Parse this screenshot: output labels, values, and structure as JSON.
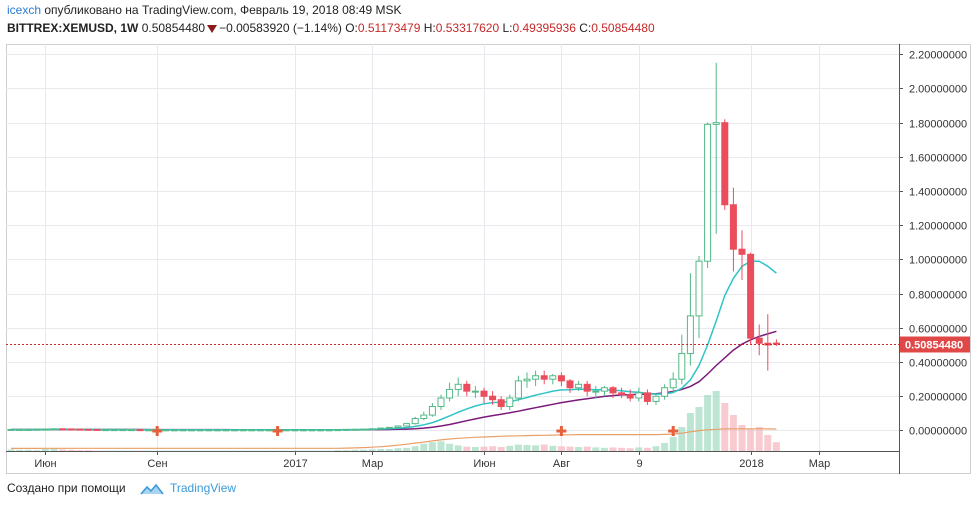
{
  "header": {
    "author": "icexch",
    "published_text": " опубликовано на TradingView.com, Февраль 19, 2018 08:49 MSK",
    "symbol": "BITTREX:XEMUSD, 1W",
    "last": "0.50854480",
    "change": "−0.00583920 (−1.14%)",
    "o_label": "O:",
    "o": "0.51173479",
    "h_label": "H:",
    "h": "0.53317620",
    "l_label": "L:",
    "l": "0.49395936",
    "c_label": "C:",
    "c": "0.50854480"
  },
  "footer": {
    "created_with": "Создано при помощи",
    "brand": "TradingView"
  },
  "colors": {
    "up": "#53b987",
    "down": "#eb4d5c",
    "ma_fast": "#2fc4c6",
    "ma_slow": "#7b1a7b",
    "ma_long": "#e8a06a",
    "price_line": "#c62828"
  },
  "chart_data": {
    "type": "candlestick",
    "interval": "1W",
    "price_axis": {
      "min": -0.12,
      "max": 2.26,
      "ticks": [
        2.2,
        2.0,
        1.8,
        1.6,
        1.4,
        1.2,
        1.0,
        0.8,
        0.6,
        0.4,
        0.2,
        0.0
      ],
      "tick_labels": [
        "2.20000000",
        "2.00000000",
        "1.80000000",
        "1.60000000",
        "1.40000000",
        "1.20000000",
        "1.00000000",
        "0.80000000",
        "0.60000000",
        "0.40000000",
        "0.20000000",
        "0.00000000"
      ]
    },
    "last_price_label": "0.50854480",
    "last_price": 0.5085448,
    "time_axis_labels": [
      {
        "label": "Июн",
        "week": 4
      },
      {
        "label": "Сен",
        "week": 17
      },
      {
        "label": "2017",
        "week": 33
      },
      {
        "label": "Мар",
        "week": 42
      },
      {
        "label": "Июн",
        "week": 55
      },
      {
        "label": "Авг",
        "week": 64
      },
      {
        "label": "9",
        "week": 73
      },
      {
        "label": "2018",
        "week": 86
      },
      {
        "label": "Мар",
        "week": 94
      }
    ],
    "candles": [
      [
        0.006,
        0.007,
        0.005,
        0.006
      ],
      [
        0.006,
        0.007,
        0.005,
        0.006
      ],
      [
        0.006,
        0.007,
        0.005,
        0.006
      ],
      [
        0.006,
        0.008,
        0.005,
        0.007
      ],
      [
        0.007,
        0.009,
        0.006,
        0.008
      ],
      [
        0.008,
        0.012,
        0.007,
        0.01
      ],
      [
        0.01,
        0.012,
        0.008,
        0.009
      ],
      [
        0.009,
        0.01,
        0.007,
        0.008
      ],
      [
        0.008,
        0.009,
        0.006,
        0.007
      ],
      [
        0.007,
        0.008,
        0.005,
        0.006
      ],
      [
        0.006,
        0.007,
        0.004,
        0.005
      ],
      [
        0.005,
        0.006,
        0.004,
        0.005
      ],
      [
        0.005,
        0.006,
        0.004,
        0.005
      ],
      [
        0.005,
        0.006,
        0.004,
        0.005
      ],
      [
        0.005,
        0.006,
        0.004,
        0.005
      ],
      [
        0.005,
        0.006,
        0.004,
        0.004
      ],
      [
        0.004,
        0.005,
        0.004,
        0.004
      ],
      [
        0.004,
        0.005,
        0.003,
        0.004
      ],
      [
        0.004,
        0.005,
        0.003,
        0.004
      ],
      [
        0.004,
        0.005,
        0.003,
        0.004
      ],
      [
        0.004,
        0.005,
        0.003,
        0.004
      ],
      [
        0.004,
        0.005,
        0.003,
        0.004
      ],
      [
        0.004,
        0.005,
        0.003,
        0.004
      ],
      [
        0.004,
        0.005,
        0.003,
        0.004
      ],
      [
        0.004,
        0.005,
        0.003,
        0.004
      ],
      [
        0.004,
        0.005,
        0.003,
        0.004
      ],
      [
        0.004,
        0.005,
        0.003,
        0.004
      ],
      [
        0.004,
        0.005,
        0.003,
        0.004
      ],
      [
        0.004,
        0.005,
        0.003,
        0.004
      ],
      [
        0.004,
        0.005,
        0.003,
        0.004
      ],
      [
        0.004,
        0.005,
        0.003,
        0.004
      ],
      [
        0.004,
        0.005,
        0.003,
        0.004
      ],
      [
        0.004,
        0.005,
        0.003,
        0.004
      ],
      [
        0.004,
        0.005,
        0.003,
        0.004
      ],
      [
        0.004,
        0.005,
        0.003,
        0.004
      ],
      [
        0.004,
        0.005,
        0.003,
        0.004
      ],
      [
        0.004,
        0.005,
        0.003,
        0.004
      ],
      [
        0.004,
        0.005,
        0.003,
        0.004
      ],
      [
        0.004,
        0.006,
        0.003,
        0.005
      ],
      [
        0.005,
        0.007,
        0.004,
        0.006
      ],
      [
        0.006,
        0.008,
        0.005,
        0.007
      ],
      [
        0.007,
        0.009,
        0.006,
        0.008
      ],
      [
        0.008,
        0.012,
        0.007,
        0.01
      ],
      [
        0.01,
        0.016,
        0.009,
        0.014
      ],
      [
        0.014,
        0.02,
        0.012,
        0.018
      ],
      [
        0.018,
        0.03,
        0.016,
        0.026
      ],
      [
        0.026,
        0.045,
        0.022,
        0.04
      ],
      [
        0.04,
        0.08,
        0.035,
        0.07
      ],
      [
        0.07,
        0.11,
        0.06,
        0.09
      ],
      [
        0.09,
        0.16,
        0.08,
        0.14
      ],
      [
        0.14,
        0.21,
        0.12,
        0.19
      ],
      [
        0.19,
        0.28,
        0.17,
        0.24
      ],
      [
        0.24,
        0.31,
        0.2,
        0.27
      ],
      [
        0.27,
        0.29,
        0.2,
        0.23
      ],
      [
        0.23,
        0.26,
        0.19,
        0.23
      ],
      [
        0.23,
        0.25,
        0.16,
        0.2
      ],
      [
        0.2,
        0.23,
        0.15,
        0.18
      ],
      [
        0.18,
        0.2,
        0.12,
        0.14
      ],
      [
        0.14,
        0.21,
        0.12,
        0.19
      ],
      [
        0.19,
        0.32,
        0.17,
        0.29
      ],
      [
        0.29,
        0.34,
        0.25,
        0.3
      ],
      [
        0.3,
        0.35,
        0.26,
        0.32
      ],
      [
        0.32,
        0.35,
        0.27,
        0.3
      ],
      [
        0.3,
        0.33,
        0.27,
        0.32
      ],
      [
        0.32,
        0.34,
        0.26,
        0.29
      ],
      [
        0.29,
        0.3,
        0.22,
        0.25
      ],
      [
        0.25,
        0.29,
        0.23,
        0.27
      ],
      [
        0.27,
        0.29,
        0.2,
        0.23
      ],
      [
        0.23,
        0.26,
        0.19,
        0.23
      ],
      [
        0.23,
        0.26,
        0.2,
        0.25
      ],
      [
        0.25,
        0.26,
        0.19,
        0.22
      ],
      [
        0.22,
        0.25,
        0.19,
        0.21
      ],
      [
        0.21,
        0.24,
        0.17,
        0.19
      ],
      [
        0.19,
        0.25,
        0.17,
        0.22
      ],
      [
        0.22,
        0.24,
        0.15,
        0.17
      ],
      [
        0.17,
        0.21,
        0.15,
        0.2
      ],
      [
        0.2,
        0.27,
        0.18,
        0.25
      ],
      [
        0.25,
        0.34,
        0.22,
        0.3
      ],
      [
        0.3,
        0.56,
        0.27,
        0.45
      ],
      [
        0.45,
        0.92,
        0.38,
        0.67
      ],
      [
        0.67,
        1.02,
        0.54,
        0.99
      ],
      [
        0.99,
        1.8,
        0.95,
        1.79
      ],
      [
        1.79,
        2.15,
        1.15,
        1.8
      ],
      [
        1.8,
        1.82,
        1.29,
        1.32
      ],
      [
        1.32,
        1.42,
        0.93,
        1.06
      ],
      [
        1.06,
        1.17,
        0.88,
        1.03
      ],
      [
        1.03,
        1.04,
        0.5,
        0.54
      ],
      [
        0.54,
        0.62,
        0.44,
        0.51
      ],
      [
        0.51,
        0.68,
        0.35,
        0.5
      ],
      [
        0.511,
        0.533,
        0.494,
        0.509
      ]
    ],
    "volume": [
      4,
      3,
      3,
      2,
      5,
      6,
      4,
      3,
      2,
      2,
      1,
      1,
      1,
      1,
      1,
      1,
      1,
      1,
      1,
      1,
      1,
      1,
      1,
      1,
      1,
      1,
      1,
      1,
      1,
      1,
      1,
      1,
      1,
      1,
      1,
      1,
      1,
      1,
      2,
      2,
      3,
      3,
      4,
      5,
      5,
      7,
      8,
      12,
      18,
      22,
      24,
      18,
      14,
      11,
      10,
      11,
      12,
      10,
      13,
      16,
      15,
      14,
      16,
      13,
      12,
      11,
      10,
      11,
      9,
      8,
      9,
      8,
      7,
      9,
      8,
      12,
      20,
      35,
      60,
      95,
      110,
      140,
      150,
      120,
      90,
      65,
      55,
      60,
      40,
      22
    ],
    "ma_fast_values": [
      0.006,
      0.006,
      0.006,
      0.006,
      0.007,
      0.007,
      0.007,
      0.007,
      0.007,
      0.007,
      0.006,
      0.006,
      0.006,
      0.005,
      0.005,
      0.005,
      0.005,
      0.005,
      0.004,
      0.004,
      0.004,
      0.004,
      0.004,
      0.004,
      0.004,
      0.004,
      0.004,
      0.004,
      0.004,
      0.004,
      0.004,
      0.004,
      0.004,
      0.004,
      0.004,
      0.004,
      0.004,
      0.004,
      0.004,
      0.005,
      0.005,
      0.006,
      0.007,
      0.008,
      0.01,
      0.013,
      0.017,
      0.024,
      0.033,
      0.046,
      0.064,
      0.085,
      0.107,
      0.126,
      0.143,
      0.156,
      0.163,
      0.166,
      0.168,
      0.18,
      0.193,
      0.207,
      0.218,
      0.23,
      0.237,
      0.238,
      0.242,
      0.24,
      0.238,
      0.239,
      0.236,
      0.232,
      0.227,
      0.223,
      0.216,
      0.213,
      0.214,
      0.222,
      0.247,
      0.296,
      0.38,
      0.5,
      0.64,
      0.79,
      0.89,
      0.96,
      0.99,
      0.99,
      0.96,
      0.92
    ],
    "ma_slow_values": [
      0.006,
      0.006,
      0.006,
      0.006,
      0.006,
      0.006,
      0.006,
      0.006,
      0.006,
      0.006,
      0.006,
      0.006,
      0.006,
      0.006,
      0.006,
      0.006,
      0.005,
      0.005,
      0.005,
      0.005,
      0.005,
      0.005,
      0.005,
      0.005,
      0.005,
      0.005,
      0.004,
      0.004,
      0.004,
      0.004,
      0.004,
      0.004,
      0.004,
      0.004,
      0.004,
      0.004,
      0.004,
      0.004,
      0.004,
      0.004,
      0.004,
      0.004,
      0.005,
      0.005,
      0.006,
      0.007,
      0.008,
      0.01,
      0.014,
      0.019,
      0.026,
      0.035,
      0.046,
      0.057,
      0.068,
      0.078,
      0.087,
      0.095,
      0.104,
      0.113,
      0.123,
      0.133,
      0.143,
      0.153,
      0.163,
      0.171,
      0.179,
      0.186,
      0.193,
      0.199,
      0.204,
      0.208,
      0.21,
      0.212,
      0.213,
      0.215,
      0.22,
      0.228,
      0.24,
      0.258,
      0.285,
      0.33,
      0.38,
      0.425,
      0.47,
      0.505,
      0.53,
      0.55,
      0.565,
      0.58
    ],
    "ma_long_values": [
      -0.105,
      -0.105,
      -0.105,
      -0.105,
      -0.104,
      -0.104,
      -0.104,
      -0.104,
      -0.104,
      -0.104,
      -0.104,
      -0.104,
      -0.104,
      -0.104,
      -0.104,
      -0.104,
      -0.104,
      -0.104,
      -0.104,
      -0.104,
      -0.104,
      -0.104,
      -0.104,
      -0.104,
      -0.104,
      -0.104,
      -0.104,
      -0.104,
      -0.104,
      -0.104,
      -0.104,
      -0.104,
      -0.104,
      -0.104,
      -0.104,
      -0.104,
      -0.104,
      -0.104,
      -0.104,
      -0.103,
      -0.102,
      -0.1,
      -0.098,
      -0.095,
      -0.091,
      -0.086,
      -0.08,
      -0.074,
      -0.068,
      -0.061,
      -0.055,
      -0.05,
      -0.046,
      -0.043,
      -0.04,
      -0.038,
      -0.036,
      -0.034,
      -0.032,
      -0.031,
      -0.03,
      -0.029,
      -0.028,
      -0.027,
      -0.026,
      -0.025,
      -0.024,
      -0.024,
      -0.024,
      -0.024,
      -0.024,
      -0.024,
      -0.024,
      -0.024,
      -0.024,
      -0.024,
      -0.023,
      -0.021,
      -0.016,
      -0.008,
      -0.001,
      0.004,
      0.007,
      0.009,
      0.01,
      0.01,
      0.01,
      0.01,
      0.009,
      0.008
    ],
    "event_markers_weeks": [
      17,
      31,
      64,
      77
    ]
  }
}
